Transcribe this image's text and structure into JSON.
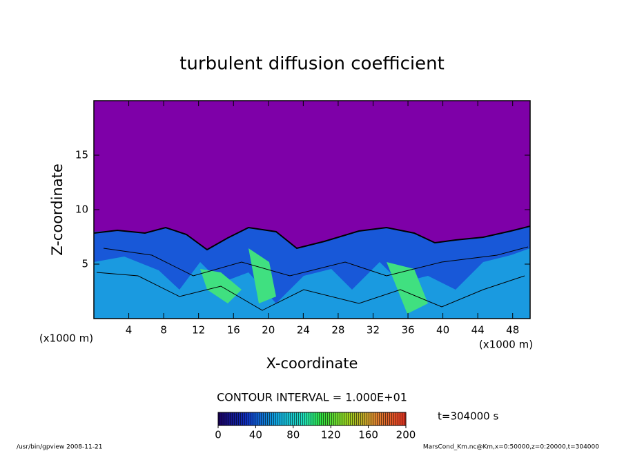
{
  "chart_data": {
    "type": "contour",
    "title": "turbulent diffusion coefficient",
    "x_label": "X-coordinate",
    "y_label": "Z-coordinate",
    "x_unit": "(x1000 m)",
    "y_unit": "(x1000 m)",
    "xlim": [
      0,
      50
    ],
    "xticks": [
      4,
      8,
      12,
      16,
      20,
      24,
      28,
      32,
      36,
      40,
      44,
      48
    ],
    "ylim": [
      0,
      20
    ],
    "yticks": [
      5,
      10,
      15
    ],
    "colorbar": {
      "lim": [
        0,
        200
      ],
      "ticks": [
        0,
        40,
        80,
        120,
        160,
        200
      ]
    },
    "contour_interval": "CONTOUR INTERVAL = 1.000E+01",
    "time_label": "t=304000 s",
    "footer_left": "/usr/bin/gpview  2008-11-21",
    "footer_right": "MarsCond_Km.nc@Km,x=0:50000,z=0:20000,t=304000"
  }
}
